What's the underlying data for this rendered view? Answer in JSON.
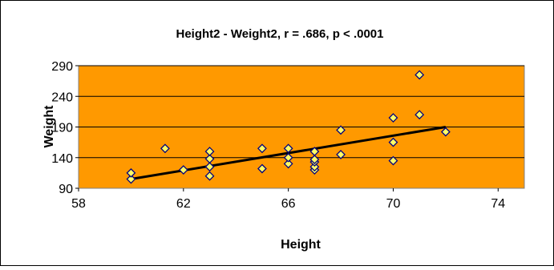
{
  "chart_data": {
    "type": "scatter",
    "title": "Height2 - Weight2, r = .686, p < .0001",
    "xlabel": "Height",
    "ylabel": "Weight",
    "xlim": [
      58,
      75
    ],
    "ylim": [
      90,
      290
    ],
    "xticks": [
      58,
      62,
      66,
      70,
      74
    ],
    "yticks": [
      90,
      140,
      190,
      240,
      290
    ],
    "x_tick_labels": [
      "58",
      "62",
      "66",
      "70",
      "74"
    ],
    "y_tick_labels": [
      "90",
      "140",
      "190",
      "240",
      "290"
    ],
    "grid": "horizontal",
    "legend": "none",
    "colors": {
      "plot_area": "#FF9900",
      "marker_fill": "#FFFF66",
      "marker_edge": "#000080",
      "trendline": "#000000",
      "gridline": "#000000"
    },
    "series": [
      {
        "points": [
          [
            60,
            105
          ],
          [
            60,
            115
          ],
          [
            61.3,
            155
          ],
          [
            62,
            120
          ],
          [
            63,
            110
          ],
          [
            63,
            125
          ],
          [
            63,
            138
          ],
          [
            63,
            150
          ],
          [
            65,
            122
          ],
          [
            65,
            155
          ],
          [
            66,
            130
          ],
          [
            66,
            140
          ],
          [
            66,
            155
          ],
          [
            67,
            120
          ],
          [
            67,
            125
          ],
          [
            67,
            133
          ],
          [
            67,
            137
          ],
          [
            67,
            150
          ],
          [
            68,
            145
          ],
          [
            68,
            185
          ],
          [
            70,
            135
          ],
          [
            70,
            165
          ],
          [
            70,
            205
          ],
          [
            71,
            210
          ],
          [
            71,
            275
          ],
          [
            72,
            182
          ]
        ]
      }
    ],
    "trendline": {
      "x": [
        60,
        72
      ],
      "y": [
        105,
        190
      ]
    }
  }
}
